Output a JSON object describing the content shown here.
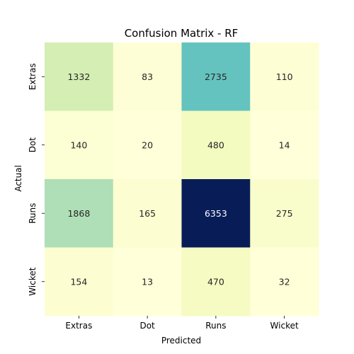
{
  "chart_data": {
    "type": "heatmap",
    "title": "Confusion Matrix - RF",
    "xlabel": "Predicted",
    "ylabel": "Actual",
    "x_categories": [
      "Extras",
      "Dot",
      "Runs",
      "Wicket"
    ],
    "y_categories": [
      "Extras",
      "Dot",
      "Runs",
      "Wicket"
    ],
    "values": [
      [
        1332,
        83,
        2735,
        110
      ],
      [
        140,
        20,
        480,
        14
      ],
      [
        1868,
        165,
        6353,
        275
      ],
      [
        154,
        13,
        470,
        32
      ]
    ],
    "colormap": "YlGnBu",
    "colorbar": false,
    "grid": false
  }
}
